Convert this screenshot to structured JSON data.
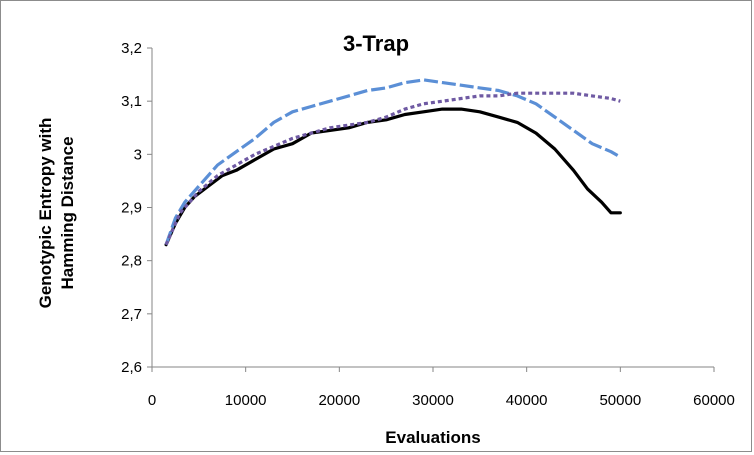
{
  "chart_data": {
    "type": "line",
    "title": "3-Trap",
    "xlabel": "Evaluations",
    "ylabel_lines": [
      "Genotypic Entropy with",
      "Hamming Distance"
    ],
    "xlim": [
      0,
      60000
    ],
    "ylim": [
      2.6,
      3.2
    ],
    "x_ticks": [
      0,
      10000,
      20000,
      30000,
      40000,
      50000,
      60000
    ],
    "x_tick_labels": [
      "0",
      "10000",
      "20000",
      "30000",
      "40000",
      "50000",
      "60000"
    ],
    "y_ticks": [
      2.6,
      2.7,
      2.8,
      2.9,
      3.0,
      3.1,
      3.2
    ],
    "y_tick_labels": [
      "2,6",
      "2,7",
      "2,8",
      "2,9",
      "3",
      "3,1",
      "3,2"
    ],
    "grid": false,
    "legend": "none",
    "series": [
      {
        "color": "#000000",
        "style": "solid",
        "x": [
          1500,
          2500,
          3500,
          4500,
          6000,
          7500,
          9000,
          11000,
          13000,
          15000,
          17000,
          19000,
          21000,
          23000,
          25000,
          27000,
          29000,
          31000,
          33000,
          35000,
          37000,
          39000,
          41000,
          43000,
          45000,
          46500,
          48000,
          49000,
          50000
        ],
        "values": [
          2.83,
          2.87,
          2.9,
          2.92,
          2.94,
          2.96,
          2.97,
          2.99,
          3.01,
          3.02,
          3.04,
          3.045,
          3.05,
          3.06,
          3.065,
          3.075,
          3.08,
          3.085,
          3.085,
          3.08,
          3.07,
          3.06,
          3.04,
          3.01,
          2.97,
          2.935,
          2.91,
          2.89,
          2.89
        ]
      },
      {
        "color": "#5b8fd6",
        "style": "dashed",
        "x": [
          1500,
          2500,
          3500,
          5000,
          7000,
          9000,
          11000,
          13000,
          15000,
          17000,
          19000,
          21000,
          23000,
          25000,
          27000,
          29000,
          31000,
          33000,
          35000,
          37000,
          39000,
          41000,
          43000,
          45000,
          47000,
          49000,
          50000
        ],
        "values": [
          2.83,
          2.88,
          2.91,
          2.94,
          2.98,
          3.005,
          3.03,
          3.06,
          3.08,
          3.09,
          3.1,
          3.11,
          3.12,
          3.125,
          3.135,
          3.14,
          3.135,
          3.13,
          3.125,
          3.12,
          3.11,
          3.095,
          3.07,
          3.045,
          3.02,
          3.005,
          2.995
        ]
      },
      {
        "color": "#6f5aa3",
        "style": "dotted",
        "x": [
          1500,
          3000,
          5000,
          7000,
          9000,
          11000,
          13000,
          15000,
          17000,
          19000,
          21000,
          23000,
          25000,
          27000,
          29000,
          31000,
          33000,
          35000,
          37000,
          39000,
          41000,
          43000,
          45000,
          47000,
          49000,
          50000
        ],
        "values": [
          2.83,
          2.89,
          2.93,
          2.96,
          2.98,
          3.0,
          3.015,
          3.03,
          3.04,
          3.05,
          3.055,
          3.06,
          3.07,
          3.085,
          3.095,
          3.1,
          3.105,
          3.11,
          3.11,
          3.115,
          3.115,
          3.115,
          3.115,
          3.11,
          3.105,
          3.1
        ]
      }
    ]
  }
}
